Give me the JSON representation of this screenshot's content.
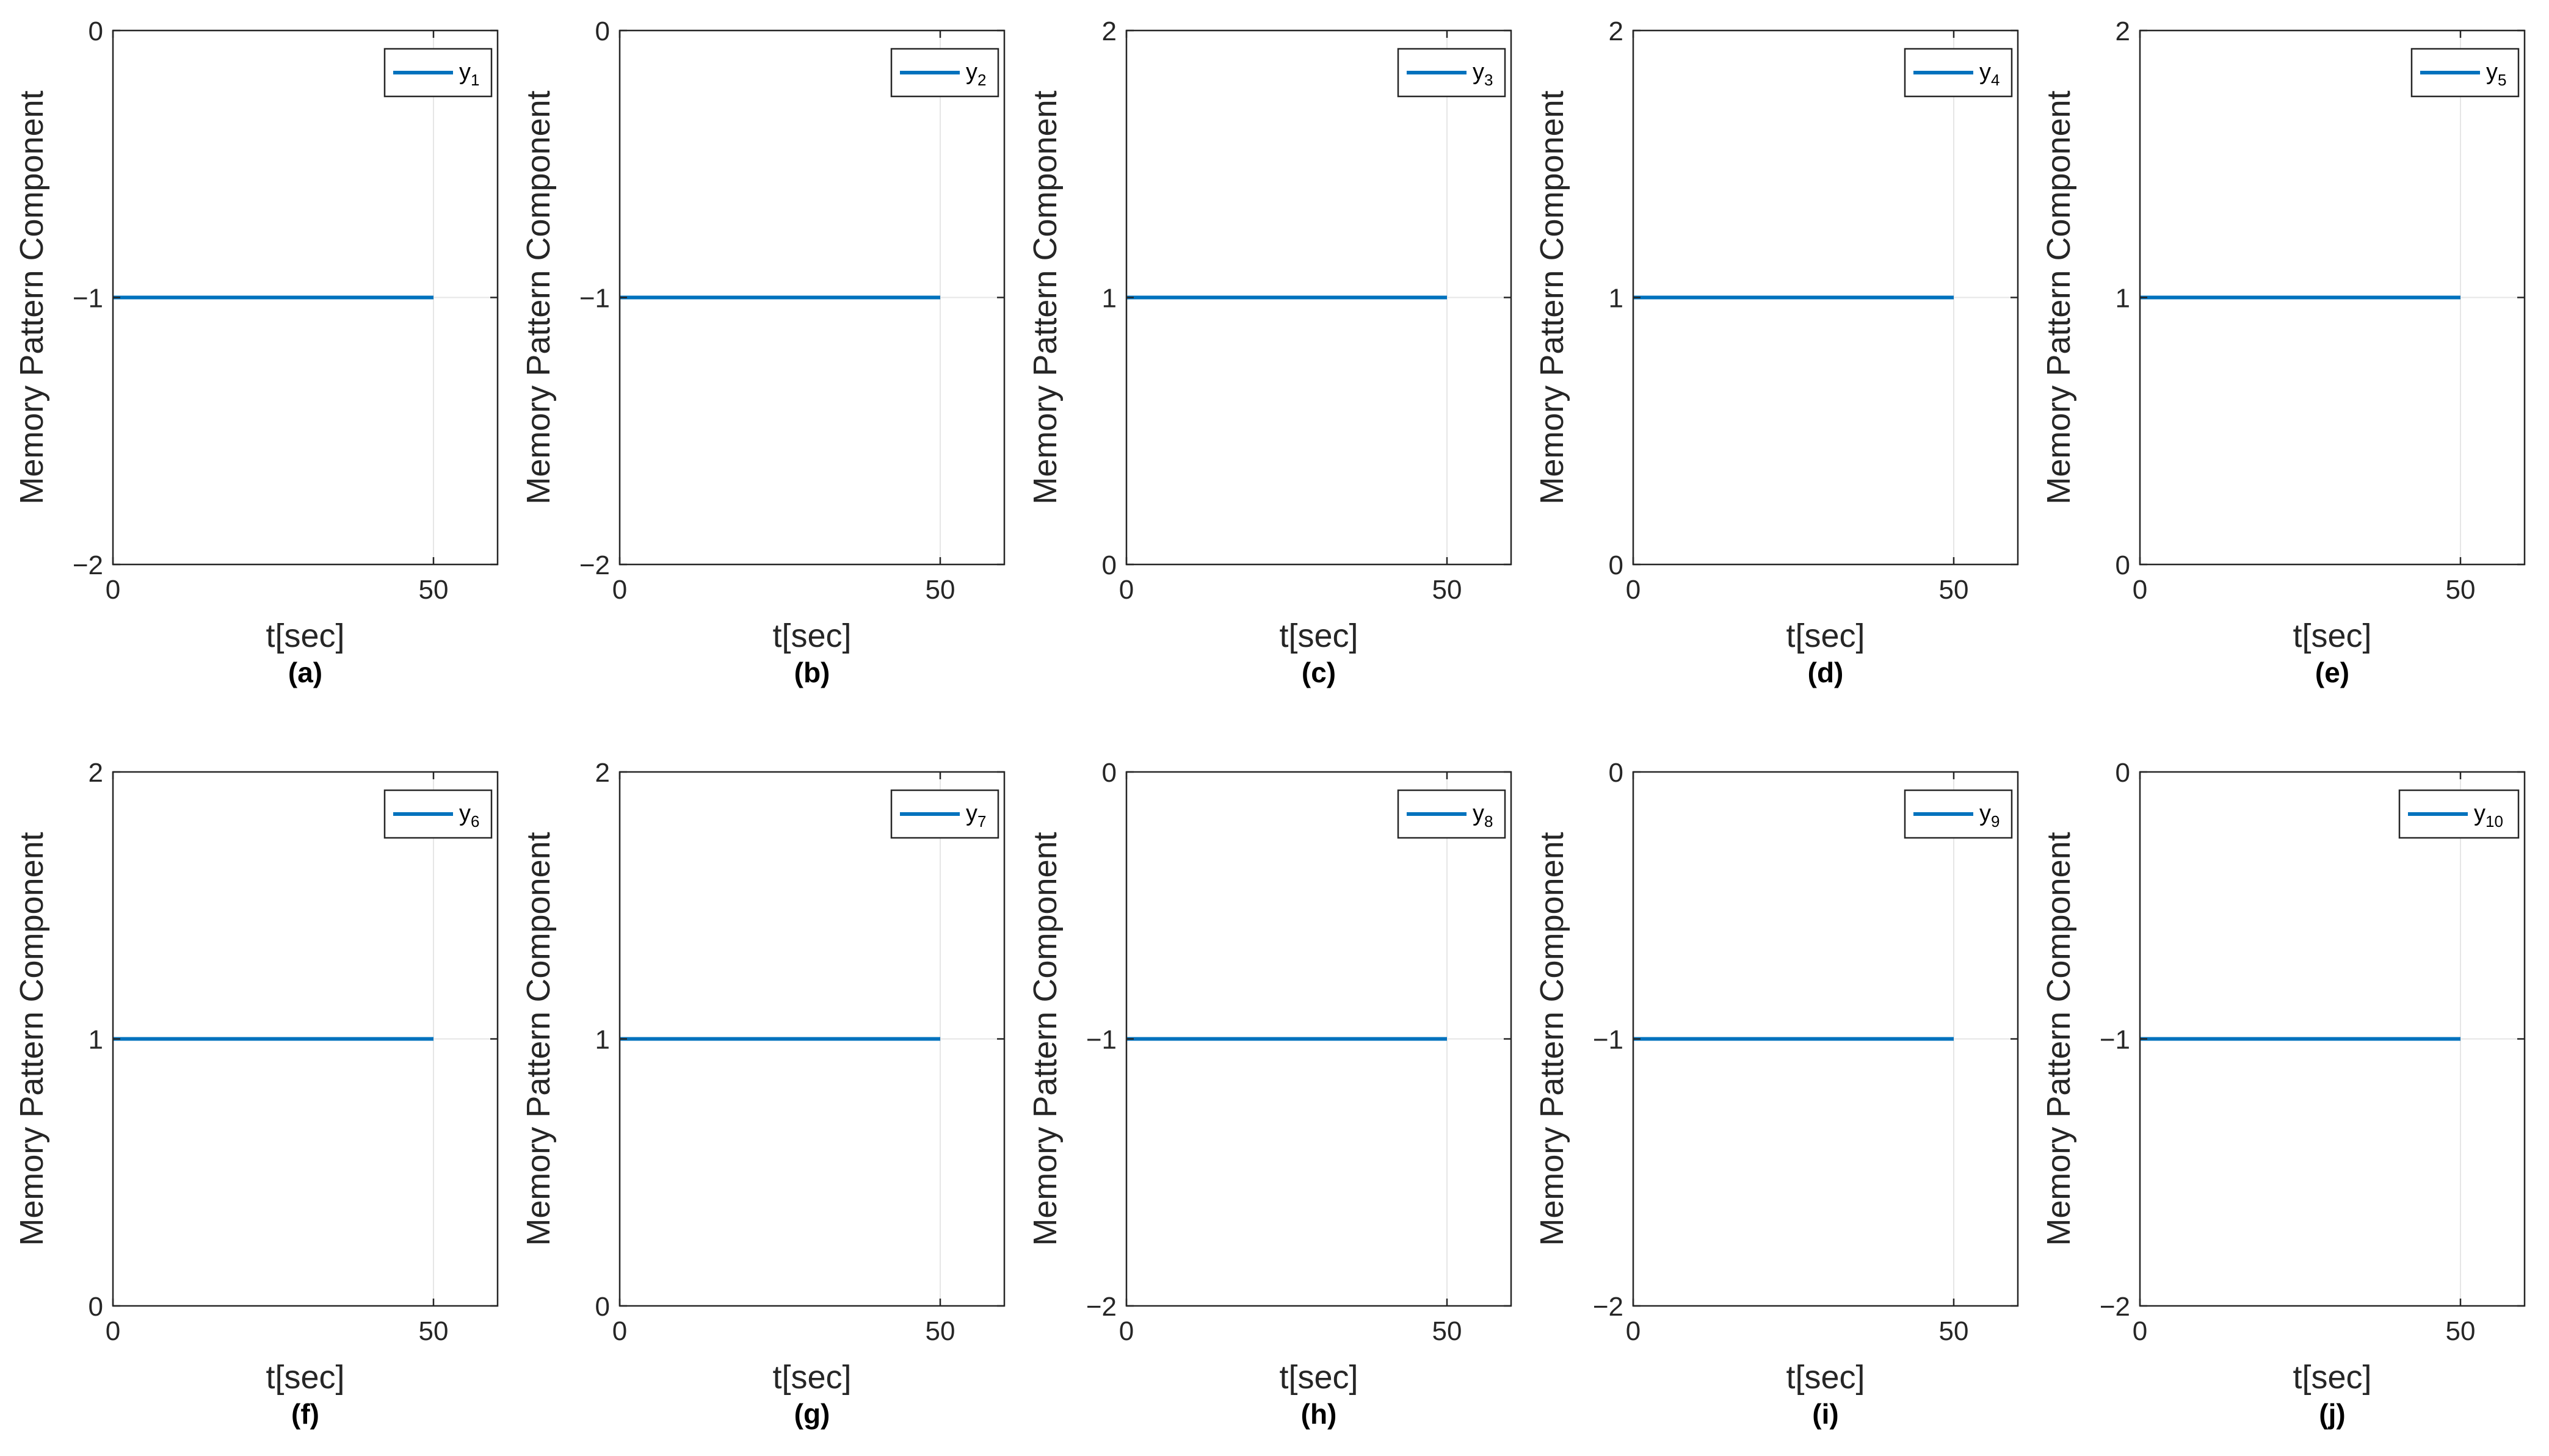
{
  "figure": {
    "line_color": "#0072BD",
    "grid_color": "#e6e6e6",
    "axis_color": "#262626"
  },
  "chart_data": [
    {
      "type": "line",
      "panel": "(a)",
      "xlabel": "t[sec]",
      "ylabel": "Memory Pattern Component",
      "xlim": [
        0,
        60
      ],
      "ylim": [
        -2,
        0
      ],
      "xticks": [
        "0",
        "50"
      ],
      "yticks": [
        "−2",
        "−1",
        "0"
      ],
      "legend": {
        "base": "y",
        "sub": "1"
      },
      "series": [
        {
          "name": "y1",
          "x": [
            0,
            50
          ],
          "y": [
            -1,
            -1
          ]
        }
      ]
    },
    {
      "type": "line",
      "panel": "(b)",
      "xlabel": "t[sec]",
      "ylabel": "Memory Pattern Component",
      "xlim": [
        0,
        60
      ],
      "ylim": [
        -2,
        0
      ],
      "xticks": [
        "0",
        "50"
      ],
      "yticks": [
        "−2",
        "−1",
        "0"
      ],
      "legend": {
        "base": "y",
        "sub": "2"
      },
      "series": [
        {
          "name": "y2",
          "x": [
            0,
            50
          ],
          "y": [
            -1,
            -1
          ]
        }
      ]
    },
    {
      "type": "line",
      "panel": "(c)",
      "xlabel": "t[sec]",
      "ylabel": "Memory Pattern Component",
      "xlim": [
        0,
        60
      ],
      "ylim": [
        0,
        2
      ],
      "xticks": [
        "0",
        "50"
      ],
      "yticks": [
        "0",
        "1",
        "2"
      ],
      "legend": {
        "base": "y",
        "sub": "3"
      },
      "series": [
        {
          "name": "y3",
          "x": [
            0,
            50
          ],
          "y": [
            1,
            1
          ]
        }
      ]
    },
    {
      "type": "line",
      "panel": "(d)",
      "xlabel": "t[sec]",
      "ylabel": "Memory Pattern Component",
      "xlim": [
        0,
        60
      ],
      "ylim": [
        0,
        2
      ],
      "xticks": [
        "0",
        "50"
      ],
      "yticks": [
        "0",
        "1",
        "2"
      ],
      "legend": {
        "base": "y",
        "sub": "4"
      },
      "series": [
        {
          "name": "y4",
          "x": [
            0,
            50
          ],
          "y": [
            1,
            1
          ]
        }
      ]
    },
    {
      "type": "line",
      "panel": "(e)",
      "xlabel": "t[sec]",
      "ylabel": "Memory Pattern Component",
      "xlim": [
        0,
        60
      ],
      "ylim": [
        0,
        2
      ],
      "xticks": [
        "0",
        "50"
      ],
      "yticks": [
        "0",
        "1",
        "2"
      ],
      "legend": {
        "base": "y",
        "sub": "5"
      },
      "series": [
        {
          "name": "y5",
          "x": [
            0,
            50
          ],
          "y": [
            1,
            1
          ]
        }
      ]
    },
    {
      "type": "line",
      "panel": "(f)",
      "xlabel": "t[sec]",
      "ylabel": "Memory Pattern Component",
      "xlim": [
        0,
        60
      ],
      "ylim": [
        0,
        2
      ],
      "xticks": [
        "0",
        "50"
      ],
      "yticks": [
        "0",
        "1",
        "2"
      ],
      "legend": {
        "base": "y",
        "sub": "6"
      },
      "series": [
        {
          "name": "y6",
          "x": [
            0,
            50
          ],
          "y": [
            1,
            1
          ]
        }
      ]
    },
    {
      "type": "line",
      "panel": "(g)",
      "xlabel": "t[sec]",
      "ylabel": "Memory Pattern Component",
      "xlim": [
        0,
        60
      ],
      "ylim": [
        0,
        2
      ],
      "xticks": [
        "0",
        "50"
      ],
      "yticks": [
        "0",
        "1",
        "2"
      ],
      "legend": {
        "base": "y",
        "sub": "7"
      },
      "series": [
        {
          "name": "y7",
          "x": [
            0,
            50
          ],
          "y": [
            1,
            1
          ]
        }
      ]
    },
    {
      "type": "line",
      "panel": "(h)",
      "xlabel": "t[sec]",
      "ylabel": "Memory Pattern Component",
      "xlim": [
        0,
        60
      ],
      "ylim": [
        -2,
        0
      ],
      "xticks": [
        "0",
        "50"
      ],
      "yticks": [
        "−2",
        "−1",
        "0"
      ],
      "legend": {
        "base": "y",
        "sub": "8"
      },
      "series": [
        {
          "name": "y8",
          "x": [
            0,
            50
          ],
          "y": [
            -1,
            -1
          ]
        }
      ]
    },
    {
      "type": "line",
      "panel": "(i)",
      "xlabel": "t[sec]",
      "ylabel": "Memory Pattern Component",
      "xlim": [
        0,
        60
      ],
      "ylim": [
        -2,
        0
      ],
      "xticks": [
        "0",
        "50"
      ],
      "yticks": [
        "−2",
        "−1",
        "0"
      ],
      "legend": {
        "base": "y",
        "sub": "9"
      },
      "series": [
        {
          "name": "y9",
          "x": [
            0,
            50
          ],
          "y": [
            -1,
            -1
          ]
        }
      ]
    },
    {
      "type": "line",
      "panel": "(j)",
      "xlabel": "t[sec]",
      "ylabel": "Memory Pattern Component",
      "xlim": [
        0,
        60
      ],
      "ylim": [
        -2,
        0
      ],
      "xticks": [
        "0",
        "50"
      ],
      "yticks": [
        "−2",
        "−1",
        "0"
      ],
      "legend": {
        "base": "y",
        "sub": "10"
      },
      "series": [
        {
          "name": "y10",
          "x": [
            0,
            50
          ],
          "y": [
            -1,
            -1
          ]
        }
      ]
    }
  ]
}
